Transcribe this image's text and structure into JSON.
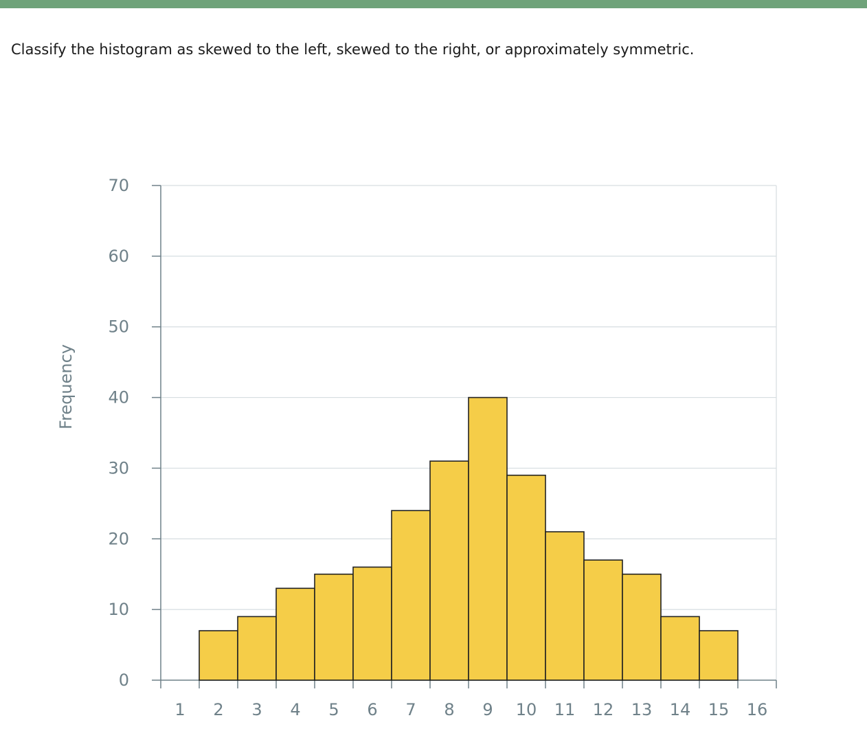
{
  "colors": {
    "top_bar": "#6fa37a",
    "bar_fill": "#f5cd48",
    "bar_stroke": "#222222",
    "axis": "#6f8189",
    "grid": "#d6dde0",
    "tick_text": "#6f8189"
  },
  "question": {
    "text": "Classify the histogram as skewed to the left, skewed to the right, or approximately symmetric."
  },
  "chart_data": {
    "type": "bar",
    "histogram": true,
    "bin_edges": [
      1,
      2,
      3,
      4,
      5,
      6,
      7,
      8,
      9,
      10,
      11,
      12,
      13,
      14,
      15,
      16
    ],
    "bins": [
      {
        "from": 2,
        "to": 3,
        "value": 7
      },
      {
        "from": 3,
        "to": 4,
        "value": 9
      },
      {
        "from": 4,
        "to": 5,
        "value": 13
      },
      {
        "from": 5,
        "to": 6,
        "value": 15
      },
      {
        "from": 6,
        "to": 7,
        "value": 16
      },
      {
        "from": 7,
        "to": 8,
        "value": 24
      },
      {
        "from": 8,
        "to": 9,
        "value": 31
      },
      {
        "from": 9,
        "to": 10,
        "value": 40
      },
      {
        "from": 10,
        "to": 11,
        "value": 29
      },
      {
        "from": 11,
        "to": 12,
        "value": 21
      },
      {
        "from": 12,
        "to": 13,
        "value": 17
      },
      {
        "from": 13,
        "to": 14,
        "value": 15
      },
      {
        "from": 14,
        "to": 15,
        "value": 9
      },
      {
        "from": 15,
        "to": 16,
        "value": 7
      }
    ],
    "x_tick_labels": [
      "1",
      "2",
      "3",
      "4",
      "5",
      "6",
      "7",
      "8",
      "9",
      "10",
      "11",
      "12",
      "13",
      "14",
      "15",
      "16"
    ],
    "y_tick_values": [
      0,
      10,
      20,
      30,
      40,
      50,
      60,
      70
    ],
    "y_tick_labels": [
      "0",
      "10",
      "20",
      "30",
      "40",
      "50",
      "60",
      "70"
    ],
    "xlim": [
      1,
      17
    ],
    "ylim": [
      0,
      70
    ],
    "xlabel": "",
    "ylabel": "Frequency",
    "title": "",
    "grid": "horizontal",
    "legend": false
  }
}
